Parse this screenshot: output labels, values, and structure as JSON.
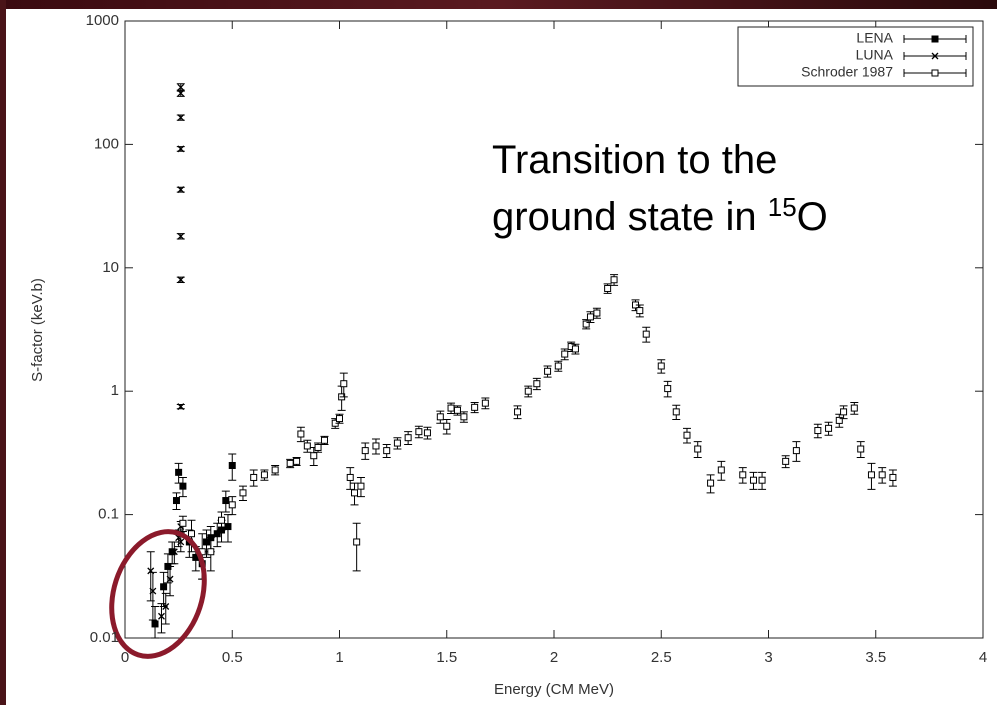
{
  "chart_data": {
    "type": "errorbar-scatter",
    "x_label": "Energy (CM MeV)",
    "y_label": "S-factor (keV.b)",
    "annotation": {
      "line1": "Transition to the",
      "line2": "ground state in ",
      "superscript": "15",
      "element": "O"
    },
    "xlim": [
      0,
      4
    ],
    "xticks": [
      0,
      0.5,
      1,
      1.5,
      2,
      2.5,
      3,
      3.5,
      4
    ],
    "ylim": [
      0.01,
      1000
    ],
    "yticks": [
      0.01,
      0.1,
      1,
      10,
      100,
      1000
    ],
    "log_y": true,
    "legend": "top-right",
    "series": [
      {
        "name": "LENA",
        "color": "#000000",
        "marker": "filled-square",
        "x": [
          0.14,
          0.18,
          0.2,
          0.22,
          0.24,
          0.25,
          0.27,
          0.3,
          0.33,
          0.36,
          0.38,
          0.4,
          0.43,
          0.45,
          0.47,
          0.48,
          0.5
        ],
        "values": [
          0.013,
          0.026,
          0.038,
          0.05,
          0.13,
          0.22,
          0.17,
          0.06,
          0.045,
          0.04,
          0.06,
          0.065,
          0.07,
          0.075,
          0.13,
          0.08,
          0.25
        ],
        "errors": [
          0.005,
          0.008,
          0.01,
          0.01,
          0.02,
          0.04,
          0.03,
          0.015,
          0.01,
          0.01,
          0.015,
          0.015,
          0.015,
          0.015,
          0.025,
          0.02,
          0.06
        ]
      },
      {
        "name": "LUNA",
        "color": "#000000",
        "marker": "x",
        "x": [
          0.12,
          0.13,
          0.17,
          0.19,
          0.21,
          0.23,
          0.25,
          0.26,
          0.26,
          0.26,
          0.26,
          0.26,
          0.26,
          0.26,
          0.26,
          0.26,
          0.26
        ],
        "values": [
          0.035,
          0.024,
          0.015,
          0.018,
          0.03,
          0.05,
          0.065,
          0.08,
          0.75,
          8,
          18,
          43,
          92,
          165,
          260,
          290,
          0.06
        ],
        "errors": [
          0.015,
          0.01,
          0.004,
          0.005,
          0.008,
          0.01,
          0.01,
          0.008,
          0.03,
          0.4,
          0.9,
          2,
          4,
          8,
          15,
          20,
          0.01
        ]
      },
      {
        "name": "Schroder 1987",
        "color": "#000000",
        "marker": "open-square",
        "x": [
          0.27,
          0.31,
          0.36,
          0.4,
          0.45,
          0.5,
          0.55,
          0.6,
          0.65,
          0.7,
          0.77,
          0.8,
          0.82,
          0.85,
          0.88,
          0.9,
          0.93,
          0.98,
          1.0,
          1.01,
          1.02,
          1.05,
          1.07,
          1.08,
          1.1,
          1.12,
          1.17,
          1.22,
          1.27,
          1.32,
          1.37,
          1.41,
          1.47,
          1.5,
          1.52,
          1.55,
          1.58,
          1.63,
          1.68,
          1.83,
          1.88,
          1.92,
          1.97,
          2.02,
          2.05,
          2.08,
          2.1,
          2.15,
          2.17,
          2.2,
          2.25,
          2.28,
          2.38,
          2.4,
          2.43,
          2.5,
          2.53,
          2.57,
          2.62,
          2.67,
          2.73,
          2.78,
          2.88,
          2.93,
          2.97,
          3.08,
          3.13,
          3.23,
          3.28,
          3.33,
          3.35,
          3.4,
          3.43,
          3.48,
          3.53,
          3.58
        ],
        "values": [
          0.085,
          0.07,
          0.05,
          0.05,
          0.09,
          0.12,
          0.15,
          0.2,
          0.21,
          0.23,
          0.26,
          0.27,
          0.45,
          0.36,
          0.3,
          0.35,
          0.4,
          0.55,
          0.6,
          0.9,
          1.15,
          0.2,
          0.15,
          0.06,
          0.17,
          0.33,
          0.36,
          0.33,
          0.38,
          0.42,
          0.47,
          0.46,
          0.62,
          0.52,
          0.73,
          0.7,
          0.62,
          0.74,
          0.8,
          0.68,
          1.0,
          1.15,
          1.45,
          1.6,
          2.0,
          2.3,
          2.2,
          3.5,
          4.0,
          4.3,
          6.8,
          8.0,
          5.0,
          4.5,
          2.9,
          1.6,
          1.05,
          0.68,
          0.44,
          0.34,
          0.18,
          0.23,
          0.21,
          0.19,
          0.19,
          0.27,
          0.33,
          0.48,
          0.5,
          0.58,
          0.68,
          0.73,
          0.34,
          0.21,
          0.21,
          0.2
        ],
        "errors": [
          0.012,
          0.02,
          0.02,
          0.015,
          0.015,
          0.02,
          0.02,
          0.03,
          0.02,
          0.02,
          0.02,
          0.02,
          0.06,
          0.04,
          0.05,
          0.03,
          0.03,
          0.05,
          0.05,
          0.2,
          0.25,
          0.04,
          0.03,
          0.025,
          0.03,
          0.05,
          0.05,
          0.04,
          0.04,
          0.05,
          0.05,
          0.05,
          0.07,
          0.07,
          0.07,
          0.06,
          0.06,
          0.07,
          0.08,
          0.08,
          0.1,
          0.12,
          0.15,
          0.15,
          0.2,
          0.2,
          0.2,
          0.3,
          0.4,
          0.4,
          0.6,
          0.8,
          0.5,
          0.5,
          0.4,
          0.2,
          0.15,
          0.09,
          0.06,
          0.05,
          0.03,
          0.04,
          0.03,
          0.03,
          0.03,
          0.03,
          0.06,
          0.06,
          0.06,
          0.07,
          0.08,
          0.08,
          0.05,
          0.05,
          0.03,
          0.03
        ]
      }
    ]
  }
}
